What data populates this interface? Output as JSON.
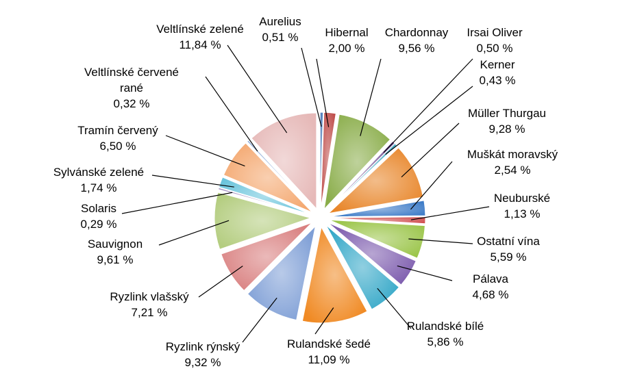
{
  "chart_data": {
    "type": "pie",
    "title": "",
    "slices": [
      {
        "label": "Aurelius",
        "value_label": "0,51 %",
        "value": 0.51,
        "color": "#4a7ab8"
      },
      {
        "label": "Hibernal",
        "value_label": "2,00 %",
        "value": 2.0,
        "color": "#c0504d"
      },
      {
        "label": "Chardonnay",
        "value_label": "9,56 %",
        "value": 9.56,
        "color": "#8aad4a"
      },
      {
        "label": "Irsai Oliver",
        "value_label": "0,50 %",
        "value": 0.5,
        "color": "#7a5a9a"
      },
      {
        "label": "Kerner",
        "value_label": "0,43 %",
        "value": 0.43,
        "color": "#4bacc6"
      },
      {
        "label": "Müller Thurgau",
        "value_label": "9,28 %",
        "value": 9.28,
        "color": "#e8862a"
      },
      {
        "label": "Muškát moravský",
        "value_label": "2,54 %",
        "value": 2.54,
        "color": "#3e7cc8"
      },
      {
        "label": "Neuburské",
        "value_label": "1,13 %",
        "value": 1.13,
        "color": "#d04e4e"
      },
      {
        "label": "Ostatní vína",
        "value_label": "5,59 %",
        "value": 5.59,
        "color": "#9bc54a"
      },
      {
        "label": "Pálava",
        "value_label": "4,68 %",
        "value": 4.68,
        "color": "#7d5cae"
      },
      {
        "label": "Rulandské bílé",
        "value_label": "5,86 %",
        "value": 5.86,
        "color": "#35a8c8"
      },
      {
        "label": "Rulandské šedé",
        "value_label": "11,09 %",
        "value": 11.09,
        "color": "#f08a24"
      },
      {
        "label": "Ryzlink rýnský",
        "value_label": "9,32 %",
        "value": 9.32,
        "color": "#7f9fd6"
      },
      {
        "label": "Ryzlink vlašský",
        "value_label": "7,21 %",
        "value": 7.21,
        "color": "#d98080"
      },
      {
        "label": "Sauvignon",
        "value_label": "9,61 %",
        "value": 9.61,
        "color": "#b4cd80"
      },
      {
        "label": "Solaris",
        "value_label": "0,29 %",
        "value": 0.29,
        "color": "#a491c2"
      },
      {
        "label": "Sylvánské zelené",
        "value_label": "1,74 %",
        "value": 1.74,
        "color": "#6ac4dc"
      },
      {
        "label": "Tramín červený",
        "value_label": "6,50 %",
        "value": 6.5,
        "color": "#f4a870"
      },
      {
        "label": "Veltlínské červené rané",
        "value_label": "0,32 %",
        "value": 0.32,
        "color": "#9cb6dc"
      },
      {
        "label": "Veltlínské zelené",
        "value_label": "11,84 %",
        "value": 11.84,
        "color": "#e6b9b8"
      }
    ]
  }
}
